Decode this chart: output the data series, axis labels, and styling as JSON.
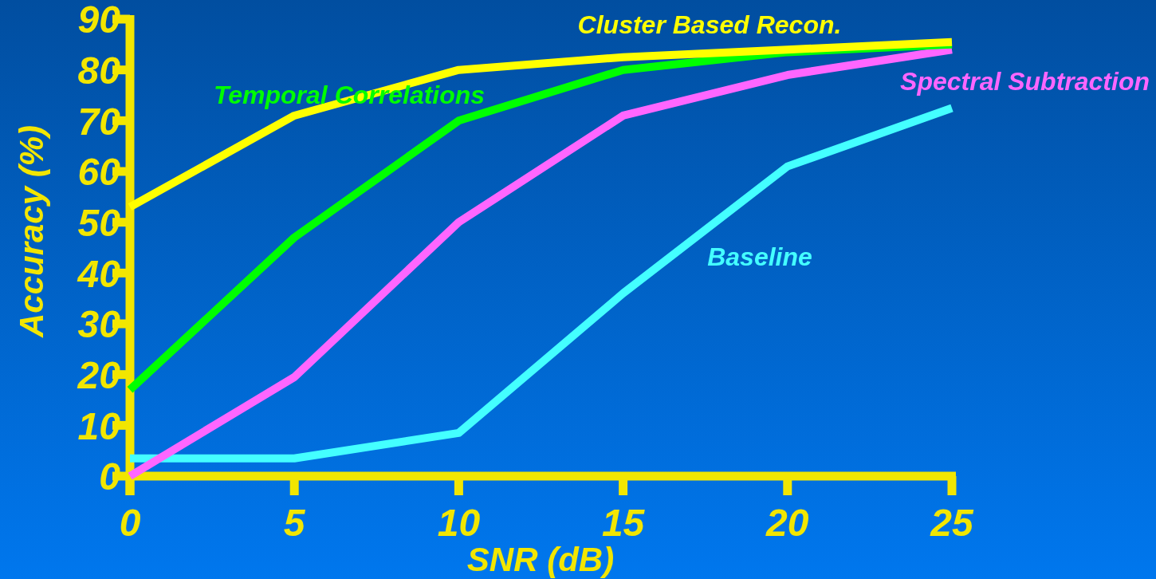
{
  "chart_data": {
    "type": "line",
    "xlabel": "SNR (dB)",
    "ylabel": "Accuracy (%)",
    "x": [
      0,
      5,
      10,
      15,
      20,
      25
    ],
    "xlim": [
      0,
      25
    ],
    "xticks": [
      0,
      5,
      10,
      15,
      20,
      25
    ],
    "ylim": [
      0,
      90
    ],
    "yticks": [
      0,
      10,
      20,
      30,
      40,
      50,
      60,
      70,
      80,
      90
    ],
    "series": [
      {
        "name": "Baseline",
        "color": "#44ffff",
        "values": [
          3.5,
          3.5,
          8.5,
          36,
          61,
          72.5
        ]
      },
      {
        "name": "Spectral Subtraction",
        "color": "#ff66ff",
        "values": [
          0,
          19.5,
          50,
          71,
          79,
          84
        ]
      },
      {
        "name": "Temporal Correlations",
        "color": "#00ff00",
        "values": [
          17,
          47,
          70,
          80,
          83.5,
          85
        ]
      },
      {
        "name": "Cluster Based Recon.",
        "color": "#ffff00",
        "values": [
          53,
          71,
          80,
          82.5,
          84,
          85.5
        ]
      }
    ]
  }
}
